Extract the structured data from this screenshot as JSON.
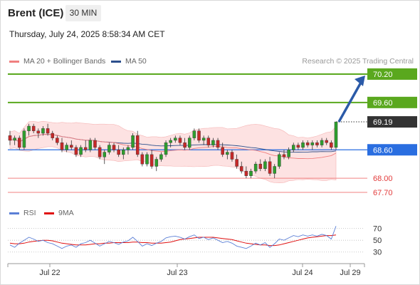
{
  "header": {
    "instrument": "Brent (ICE)",
    "timeframe": "30 MIN",
    "datetime": "Thursday, July 24, 2025 8:58:34 AM CET"
  },
  "legend": {
    "items": [
      {
        "label": "MA 20 + Bollinger Bands",
        "color": "#f08080"
      },
      {
        "label": "MA 50",
        "color": "#2c4f8c"
      }
    ],
    "credit": "Research © 2025 Trading Central"
  },
  "rsi_legend": {
    "items": [
      {
        "label": "RSI",
        "color": "#5b7fd6"
      },
      {
        "label": "9MA",
        "color": "#e01010"
      }
    ]
  },
  "colors": {
    "bull": "#2e9e2e",
    "bear": "#c62828",
    "resistance": "#5aa81e",
    "support_line": "#2a6ee0",
    "support_red": "#f08080",
    "arrow": "#2b5aa8",
    "band_fill": "#fde2e2",
    "ma20": "#f08080",
    "ma50": "#2c4f8c",
    "current": "#333333"
  },
  "chart_data": {
    "type": "candlestick",
    "x_ticks": [
      "Jul 22",
      "Jul 23",
      "Jul 24",
      "Jul 29"
    ],
    "ylim": [
      67.55,
      70.32
    ],
    "levels": [
      {
        "value": 70.2,
        "label": "70.20",
        "kind": "resistance"
      },
      {
        "value": 69.6,
        "label": "69.60",
        "kind": "resistance"
      },
      {
        "value": 69.19,
        "label": "69.19",
        "kind": "current"
      },
      {
        "value": 68.6,
        "label": "68.60",
        "kind": "support"
      },
      {
        "value": 68.0,
        "label": "68.00",
        "kind": "support-minor"
      },
      {
        "value": 67.7,
        "label": "67.70",
        "kind": "support-minor"
      }
    ],
    "arrow": {
      "from": 69.19,
      "to": 70.2
    },
    "candles": [
      [
        68.9,
        69.0,
        68.7,
        68.8
      ],
      [
        68.8,
        68.9,
        68.7,
        68.85
      ],
      [
        68.85,
        68.9,
        68.6,
        68.65
      ],
      [
        68.65,
        69.05,
        68.6,
        69.0
      ],
      [
        69.0,
        69.15,
        68.9,
        69.1
      ],
      [
        69.1,
        69.15,
        68.95,
        69.0
      ],
      [
        69.0,
        69.05,
        68.85,
        68.95
      ],
      [
        68.95,
        69.1,
        68.9,
        69.05
      ],
      [
        69.05,
        69.15,
        68.9,
        68.95
      ],
      [
        68.95,
        69.0,
        68.8,
        68.85
      ],
      [
        68.85,
        68.9,
        68.7,
        68.75
      ],
      [
        68.75,
        68.85,
        68.55,
        68.6
      ],
      [
        68.6,
        68.75,
        68.55,
        68.7
      ],
      [
        68.7,
        68.8,
        68.6,
        68.65
      ],
      [
        68.65,
        68.7,
        68.45,
        68.5
      ],
      [
        68.5,
        68.7,
        68.45,
        68.65
      ],
      [
        68.65,
        68.8,
        68.55,
        68.6
      ],
      [
        68.6,
        68.85,
        68.55,
        68.8
      ],
      [
        68.8,
        68.85,
        68.6,
        68.65
      ],
      [
        68.65,
        68.7,
        68.4,
        68.45
      ],
      [
        68.45,
        68.6,
        68.3,
        68.55
      ],
      [
        68.55,
        68.75,
        68.5,
        68.7
      ],
      [
        68.7,
        68.75,
        68.55,
        68.6
      ],
      [
        68.6,
        68.7,
        68.45,
        68.5
      ],
      [
        68.5,
        68.65,
        68.4,
        68.6
      ],
      [
        68.6,
        68.7,
        68.5,
        68.65
      ],
      [
        68.65,
        68.95,
        68.6,
        68.9
      ],
      [
        68.9,
        69.0,
        68.45,
        68.5
      ],
      [
        68.5,
        68.55,
        68.25,
        68.3
      ],
      [
        68.3,
        68.55,
        68.25,
        68.5
      ],
      [
        68.5,
        68.6,
        68.2,
        68.25
      ],
      [
        68.25,
        68.45,
        68.15,
        68.4
      ],
      [
        68.4,
        68.55,
        68.35,
        68.5
      ],
      [
        68.5,
        68.8,
        68.45,
        68.75
      ],
      [
        68.75,
        68.85,
        68.65,
        68.8
      ],
      [
        68.8,
        68.9,
        68.75,
        68.85
      ],
      [
        68.85,
        68.9,
        68.7,
        68.75
      ],
      [
        68.75,
        68.85,
        68.6,
        68.65
      ],
      [
        68.65,
        68.9,
        68.6,
        68.85
      ],
      [
        68.85,
        69.05,
        68.8,
        69.0
      ],
      [
        69.0,
        69.05,
        68.75,
        68.8
      ],
      [
        68.8,
        68.9,
        68.7,
        68.85
      ],
      [
        68.85,
        68.9,
        68.65,
        68.7
      ],
      [
        68.7,
        68.85,
        68.65,
        68.8
      ],
      [
        68.8,
        68.85,
        68.6,
        68.65
      ],
      [
        68.65,
        68.75,
        68.45,
        68.5
      ],
      [
        68.5,
        68.6,
        68.4,
        68.55
      ],
      [
        68.55,
        68.6,
        68.35,
        68.4
      ],
      [
        68.4,
        68.5,
        68.2,
        68.25
      ],
      [
        68.25,
        68.35,
        68.1,
        68.15
      ],
      [
        68.15,
        68.25,
        68.0,
        68.05
      ],
      [
        68.05,
        68.2,
        68.0,
        68.15
      ],
      [
        68.15,
        68.35,
        68.1,
        68.3
      ],
      [
        68.3,
        68.4,
        68.15,
        68.2
      ],
      [
        68.2,
        68.4,
        68.15,
        68.35
      ],
      [
        68.35,
        68.45,
        68.05,
        68.1
      ],
      [
        68.1,
        68.3,
        68.0,
        68.25
      ],
      [
        68.25,
        68.55,
        68.2,
        68.5
      ],
      [
        68.5,
        68.6,
        68.4,
        68.45
      ],
      [
        68.45,
        68.65,
        68.4,
        68.6
      ],
      [
        68.6,
        68.75,
        68.55,
        68.7
      ],
      [
        68.7,
        68.75,
        68.6,
        68.65
      ],
      [
        68.65,
        68.8,
        68.6,
        68.75
      ],
      [
        68.75,
        68.8,
        68.65,
        68.7
      ],
      [
        68.7,
        68.8,
        68.6,
        68.75
      ],
      [
        68.75,
        68.8,
        68.65,
        68.7
      ],
      [
        68.7,
        68.85,
        68.65,
        68.8
      ],
      [
        68.8,
        68.85,
        68.7,
        68.75
      ],
      [
        68.75,
        68.8,
        68.6,
        68.65
      ],
      [
        68.65,
        69.19,
        68.6,
        69.19
      ]
    ],
    "rsi": {
      "levels": [
        70,
        50,
        30
      ],
      "ylim": [
        20,
        78
      ],
      "rsi": [
        42,
        38,
        45,
        50,
        55,
        52,
        48,
        50,
        46,
        44,
        40,
        36,
        40,
        42,
        38,
        44,
        46,
        50,
        45,
        40,
        44,
        48,
        46,
        43,
        47,
        49,
        55,
        48,
        40,
        44,
        41,
        45,
        48,
        54,
        56,
        57,
        55,
        52,
        56,
        59,
        53,
        55,
        51,
        54,
        50,
        46,
        48,
        45,
        40,
        38,
        36,
        40,
        45,
        42,
        46,
        38,
        44,
        52,
        50,
        54,
        58,
        56,
        59,
        57,
        59,
        57,
        60,
        58,
        52,
        74
      ],
      "ma9": [
        45,
        44,
        44,
        45,
        47,
        48,
        49,
        50,
        50,
        49,
        47,
        45,
        44,
        43,
        42,
        42,
        42,
        43,
        44,
        44,
        45,
        45,
        46,
        46,
        46,
        46,
        47,
        47,
        46,
        46,
        45,
        45,
        45,
        46,
        47,
        49,
        51,
        52,
        53,
        54,
        55,
        55,
        55,
        55,
        54,
        53,
        52,
        51,
        49,
        47,
        45,
        44,
        43,
        42,
        42,
        41,
        41,
        42,
        44,
        46,
        48,
        50,
        52,
        54,
        55,
        56,
        57,
        58,
        58,
        59
      ]
    }
  }
}
